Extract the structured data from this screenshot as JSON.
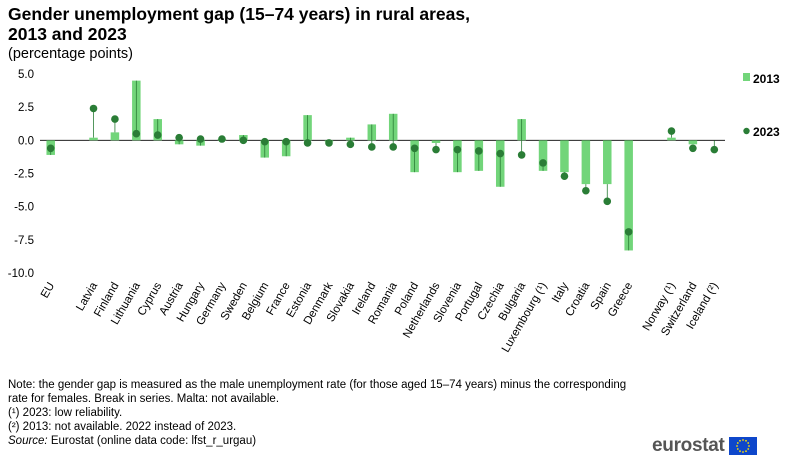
{
  "title_line1": "Gender unemployment gap (15–74 years) in rural areas,",
  "title_line2": "2013 and 2023",
  "subtitle": "(percentage points)",
  "chart_data": {
    "type": "bar",
    "title": "Gender unemployment gap (15–74 years) in rural areas, 2013 and 2023",
    "ylabel": "percentage points",
    "ylim": [
      -10,
      5
    ],
    "yticks": [
      "5.0",
      "2.5",
      "0.0",
      "-2.5",
      "-5.0",
      "-7.5",
      "-10.0"
    ],
    "ytick_values": [
      5,
      2.5,
      0,
      -2.5,
      -5,
      -7.5,
      -10
    ],
    "categories": [
      "EU",
      "",
      "Latvia",
      "Finland",
      "Lithuania",
      "Cyprus",
      "Austria",
      "Hungary",
      "Germany",
      "Sweden",
      "Belgium",
      "France",
      "Estonia",
      "Denmark",
      "Slovakia",
      "Ireland",
      "Romania",
      "Poland",
      "Netherlands",
      "Slovenia",
      "Portugal",
      "Czechia",
      "Bulgaria",
      "Luxembourg (¹)",
      "Italy",
      "Croatia",
      "Spain",
      "Greece",
      "",
      "Norway (¹)",
      "Switzerland",
      "Iceland (²)"
    ],
    "series": [
      {
        "name": "2013",
        "style": "bar",
        "color": "#72d57a",
        "values": [
          -1.1,
          null,
          0.2,
          0.6,
          4.5,
          1.6,
          -0.3,
          -0.4,
          0.1,
          0.4,
          -1.3,
          -1.2,
          1.9,
          -0.1,
          0.2,
          1.2,
          2.0,
          -2.4,
          -0.2,
          -2.4,
          -2.3,
          -3.5,
          1.6,
          -2.3,
          -2.4,
          -3.3,
          -3.3,
          -8.3,
          null,
          0.2,
          -0.3,
          null
        ]
      },
      {
        "name": "2023",
        "style": "dot",
        "color": "#2a7d36",
        "values": [
          -0.6,
          null,
          2.4,
          1.6,
          0.5,
          0.4,
          0.2,
          0.1,
          0.1,
          0.0,
          -0.1,
          -0.1,
          -0.2,
          -0.2,
          -0.3,
          -0.5,
          -0.5,
          -0.6,
          -0.7,
          -0.7,
          -0.8,
          -1.0,
          -1.1,
          -1.7,
          -2.7,
          -3.8,
          -4.6,
          -6.9,
          null,
          0.7,
          -0.6,
          -0.7
        ]
      }
    ],
    "legend": [
      "2013",
      "2023"
    ],
    "legend_position": "right"
  },
  "notes": {
    "note": "Note: the gender gap is measured as the male unemployment  rate (for those aged 15–74 years) minus the corresponding rate for females. Break in series. Malta: not available.",
    "fn1": "(¹) 2023: low reliability.",
    "fn2": "(²) 2013: not available. 2022 instead of 2023.",
    "source_label": "Source:",
    "source_text": " Eurostat (online data code: lfst_r_urgau)"
  },
  "logo": {
    "text": "eurostat",
    "flag_color": "#0e47cb"
  }
}
